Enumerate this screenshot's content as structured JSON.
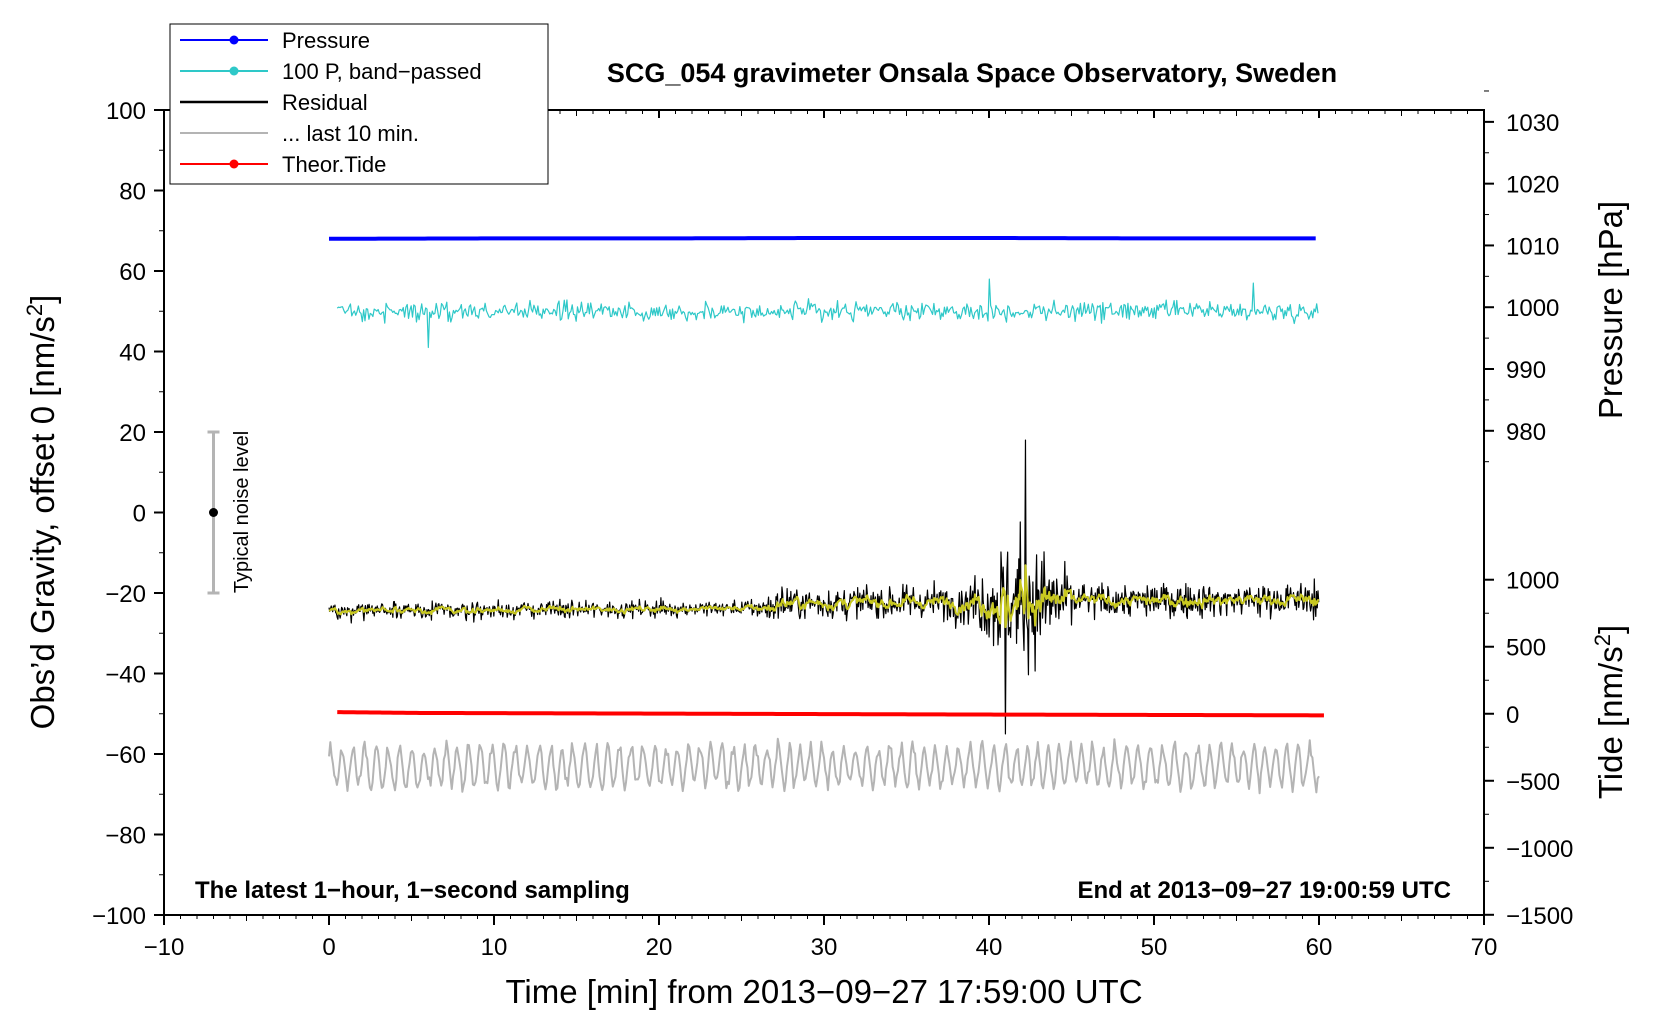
{
  "chart_data": {
    "type": "line",
    "title": "SCG_054 gravimeter Onsala Space Observatory, Sweden",
    "xlabel": "Time [min] from 2013−09−27 17:59:00 UTC",
    "ylabel_left_main": "Obs’d Gravity, offset 0 [nm/s",
    "ylabel_left_sup": "2",
    "ylabel_left_end": "]",
    "ylabel_right_top": "Pressure [hPa]",
    "ylabel_right_bottom_main": "Tide [nm/s",
    "ylabel_right_bottom_sup": "2",
    "ylabel_right_bottom_end": "]",
    "xlim": [
      -10,
      70
    ],
    "ylim": [
      -100,
      100
    ],
    "x_ticks": [
      -10,
      0,
      10,
      20,
      30,
      40,
      50,
      60,
      70
    ],
    "x_tick_labels": [
      "−10",
      "0",
      "10",
      "20",
      "30",
      "40",
      "50",
      "60",
      "70"
    ],
    "y_ticks": [
      -100,
      -80,
      -60,
      -40,
      -20,
      0,
      20,
      40,
      60,
      80,
      100
    ],
    "y_tick_labels": [
      "−100",
      "−80",
      "−60",
      "−40",
      "−20",
      "0",
      "20",
      "40",
      "60",
      "80",
      "100"
    ],
    "pressure_axis": {
      "ticks": [
        980,
        990,
        1000,
        1010,
        1020,
        1030
      ],
      "tick_labels": [
        "980",
        "990",
        "1000",
        "1010",
        "1020",
        "1030"
      ],
      "gravity_at_980": 20.3,
      "gravity_per_hpa": 1.535
    },
    "tide_axis": {
      "ticks": [
        -1500,
        -1000,
        -500,
        0,
        500,
        1000
      ],
      "tick_labels": [
        "−1500",
        "−1000",
        "−500",
        "0",
        "500",
        "1000"
      ],
      "gravity_at_0": -50,
      "gravity_per_unit": 0.0333
    },
    "legend": {
      "position": "top-left",
      "entries": [
        {
          "label": "Pressure",
          "color": "#0000ff",
          "marker": true
        },
        {
          "label": "100 P, band−passed",
          "color": "#2ec8c8",
          "marker": true
        },
        {
          "label": "Residual",
          "color": "#000000",
          "marker": false
        },
        {
          "label": "... last 10 min.",
          "color": "#b4b4b4",
          "marker": false
        },
        {
          "label": "Theor.Tide",
          "color": "#ff0000",
          "marker": true
        }
      ]
    },
    "series": [
      {
        "name": "Pressure",
        "color": "#0000ff",
        "x": [
          0,
          10,
          20,
          30,
          40,
          50,
          60
        ],
        "values": [
          68.0,
          68.1,
          68.1,
          68.2,
          68.2,
          68.1,
          68.1
        ]
      },
      {
        "name": "100 P, band−passed",
        "color": "#2ec8c8",
        "x_range": [
          0.5,
          60
        ],
        "center": 50,
        "amplitude": 3.2,
        "envelope_peaks": [
          {
            "x": 6,
            "value": 41
          },
          {
            "x": 40,
            "value": 58
          },
          {
            "x": 56,
            "value": 57
          }
        ]
      },
      {
        "name": "Residual",
        "color": "#000000",
        "x_range": [
          0,
          60
        ],
        "baseline_start": -24.5,
        "baseline_end": -22.8,
        "burst_center": 42,
        "max": 18,
        "min": -55
      },
      {
        "name": "Residual (smoothed)",
        "color": "#c8c820",
        "x_range": [
          0,
          60
        ],
        "baseline_start": -24.5,
        "baseline_end": -22.8
      },
      {
        "name": "... last 10 min.",
        "color": "#b4b4b4",
        "x_range": [
          0,
          60
        ],
        "center": -63,
        "min": -72,
        "max": -52
      },
      {
        "name": "Theor.Tide",
        "color": "#ff0000",
        "x": [
          0.5,
          5.5,
          23,
          40,
          60.5
        ],
        "values": [
          -49.6,
          -49.8,
          -50.0,
          -50.2,
          -50.4
        ]
      }
    ],
    "noise_bar": {
      "x": -7,
      "center": 0,
      "low": -20,
      "high": 20,
      "label": "Typical noise level"
    },
    "annotations": {
      "bottom_left": "The latest 1−hour, 1−second sampling",
      "bottom_right": "End at 2013−09−27 19:00:59 UTC"
    }
  }
}
